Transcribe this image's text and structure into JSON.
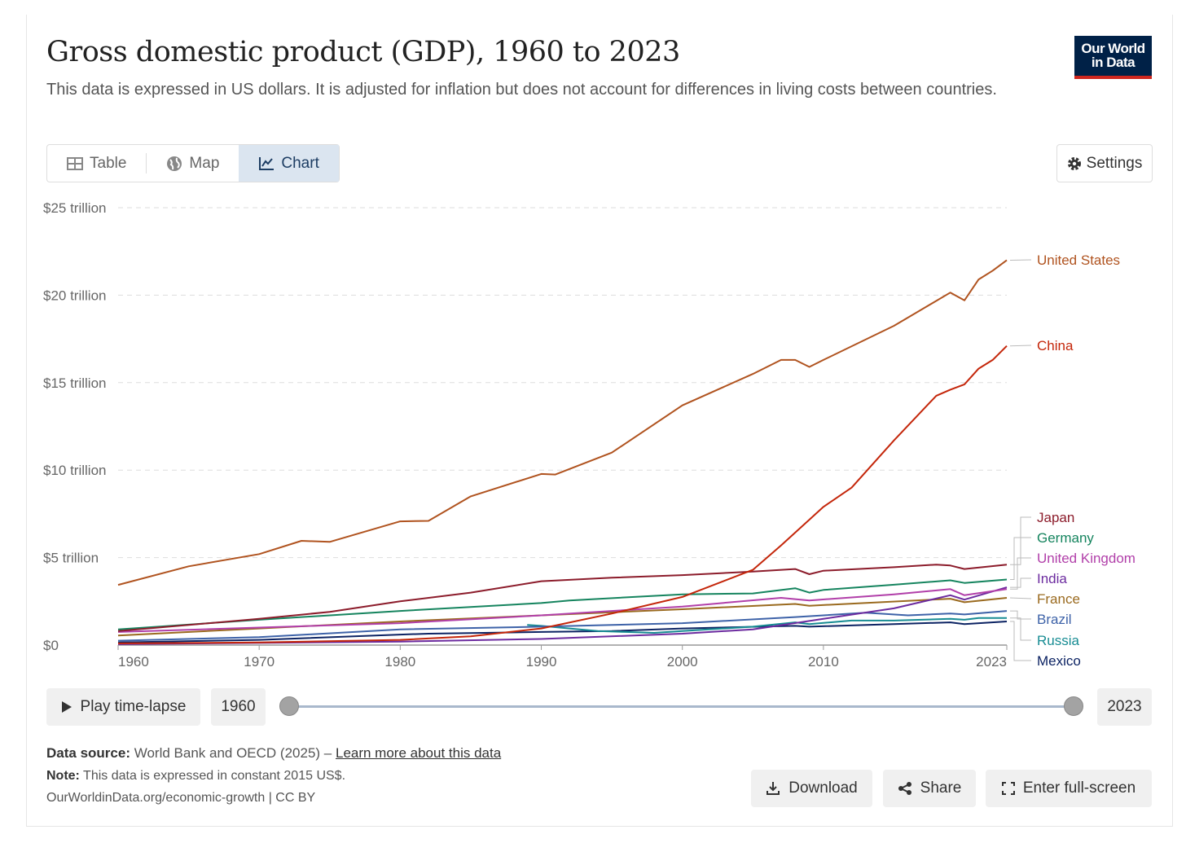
{
  "header": {
    "title": "Gross domestic product (GDP), 1960 to 2023",
    "subtitle": "This data is expressed in US dollars. It is adjusted for inflation but does not account for differences in living costs between countries.",
    "logo": "Our World in Data"
  },
  "tabs": [
    {
      "label": "Table",
      "icon": "table-icon"
    },
    {
      "label": "Map",
      "icon": "globe-icon"
    },
    {
      "label": "Chart",
      "icon": "line-chart-icon",
      "active": true
    }
  ],
  "settings_label": "Settings",
  "timeline": {
    "play_label": "Play time-lapse",
    "start": "1960",
    "end": "2023"
  },
  "footer": {
    "source_label": "Data source:",
    "source_text": "World Bank and OECD (2025) –",
    "source_link": "Learn more about this data",
    "note_label": "Note:",
    "note_text": "This data is expressed in constant 2015 US$.",
    "url": "OurWorldinData.org/economic-growth | CC BY"
  },
  "buttons": {
    "download": "Download",
    "share": "Share",
    "fullscreen": "Enter full-screen"
  },
  "chart_data": {
    "type": "line",
    "title": "Gross domestic product (GDP), 1960 to 2023",
    "xlim": [
      1960,
      2023
    ],
    "ylim": [
      0,
      25
    ],
    "x_ticks": [
      "1960",
      "1970",
      "1980",
      "1990",
      "2000",
      "2010",
      "2023"
    ],
    "y_ticks": [
      {
        "v": 0,
        "label": "$0"
      },
      {
        "v": 5,
        "label": "$5 trillion"
      },
      {
        "v": 10,
        "label": "$10 trillion"
      },
      {
        "v": 15,
        "label": "$15 trillion"
      },
      {
        "v": 20,
        "label": "$20 trillion"
      },
      {
        "v": 25,
        "label": "$25 trillion"
      }
    ],
    "units": "trillion constant 2015 US$",
    "grid": true,
    "legend": "right (end labels)",
    "series": [
      {
        "name": "United States",
        "color": "#b0531f",
        "x": [
          1960,
          1965,
          1970,
          1973,
          1975,
          1980,
          1982,
          1985,
          1990,
          1991,
          1995,
          2000,
          2005,
          2007,
          2008,
          2009,
          2010,
          2015,
          2019,
          2020,
          2021,
          2022,
          2023
        ],
        "y": [
          3.44,
          4.5,
          5.2,
          5.96,
          5.9,
          7.07,
          7.1,
          8.5,
          9.78,
          9.75,
          11.0,
          13.7,
          15.5,
          16.3,
          16.3,
          15.9,
          16.3,
          18.25,
          20.15,
          19.7,
          20.9,
          21.4,
          22.0
        ]
      },
      {
        "name": "China",
        "color": "#c4260a",
        "x": [
          1960,
          1970,
          1980,
          1985,
          1990,
          1995,
          2000,
          2005,
          2007,
          2010,
          2012,
          2015,
          2018,
          2019,
          2020,
          2021,
          2022,
          2023
        ],
        "y": [
          0.1,
          0.15,
          0.3,
          0.5,
          0.95,
          1.8,
          2.75,
          4.3,
          5.7,
          7.9,
          9.0,
          11.7,
          14.25,
          14.6,
          14.9,
          15.8,
          16.3,
          17.1
        ]
      },
      {
        "name": "Japan",
        "color": "#8c1c2b",
        "x": [
          1960,
          1970,
          1975,
          1980,
          1985,
          1990,
          1995,
          2000,
          2005,
          2008,
          2009,
          2010,
          2015,
          2018,
          2019,
          2020,
          2023
        ],
        "y": [
          0.8,
          1.5,
          1.9,
          2.5,
          3.0,
          3.65,
          3.85,
          4.0,
          4.2,
          4.35,
          4.05,
          4.25,
          4.45,
          4.6,
          4.55,
          4.35,
          4.6
        ]
      },
      {
        "name": "Germany",
        "color": "#15845e",
        "x": [
          1960,
          1970,
          1980,
          1990,
          1992,
          2000,
          2005,
          2008,
          2009,
          2010,
          2015,
          2019,
          2020,
          2023
        ],
        "y": [
          0.9,
          1.45,
          1.95,
          2.4,
          2.55,
          2.9,
          2.95,
          3.25,
          3.0,
          3.15,
          3.45,
          3.7,
          3.55,
          3.75
        ]
      },
      {
        "name": "United Kingdom",
        "color": "#b13fa9",
        "x": [
          1960,
          1970,
          1980,
          1990,
          2000,
          2007,
          2009,
          2015,
          2019,
          2020,
          2023
        ],
        "y": [
          0.75,
          1.0,
          1.25,
          1.7,
          2.2,
          2.7,
          2.55,
          2.9,
          3.2,
          2.85,
          3.2
        ]
      },
      {
        "name": "India",
        "color": "#6c2b9f",
        "x": [
          1960,
          1980,
          1990,
          2000,
          2005,
          2010,
          2015,
          2019,
          2020,
          2023
        ],
        "y": [
          0.05,
          0.2,
          0.35,
          0.65,
          0.9,
          1.5,
          2.1,
          2.85,
          2.6,
          3.3
        ]
      },
      {
        "name": "France",
        "color": "#9a6a1f",
        "x": [
          1960,
          1970,
          1980,
          1990,
          2000,
          2008,
          2009,
          2019,
          2020,
          2023
        ],
        "y": [
          0.55,
          0.95,
          1.35,
          1.7,
          2.05,
          2.35,
          2.25,
          2.65,
          2.45,
          2.7
        ]
      },
      {
        "name": "Brazil",
        "color": "#3d62a8",
        "x": [
          1960,
          1970,
          1980,
          1990,
          2000,
          2008,
          2013,
          2016,
          2019,
          2020,
          2023
        ],
        "y": [
          0.25,
          0.45,
          0.9,
          1.05,
          1.25,
          1.6,
          1.85,
          1.7,
          1.8,
          1.75,
          1.95
        ]
      },
      {
        "name": "Russia",
        "color": "#178c93",
        "x": [
          1989,
          1990,
          1992,
          1994,
          1996,
          1998,
          1999,
          2000,
          2005,
          2008,
          2009,
          2012,
          2015,
          2019,
          2020,
          2021,
          2023
        ],
        "y": [
          1.15,
          1.1,
          0.95,
          0.8,
          0.75,
          0.7,
          0.75,
          0.8,
          1.05,
          1.3,
          1.2,
          1.4,
          1.4,
          1.5,
          1.45,
          1.55,
          1.55
        ]
      },
      {
        "name": "Mexico",
        "color": "#0c2363",
        "x": [
          1960,
          1970,
          1980,
          1982,
          1990,
          1995,
          2000,
          2008,
          2009,
          2015,
          2019,
          2020,
          2023
        ],
        "y": [
          0.15,
          0.3,
          0.6,
          0.65,
          0.75,
          0.8,
          0.95,
          1.1,
          1.05,
          1.2,
          1.3,
          1.2,
          1.35
        ]
      }
    ]
  }
}
